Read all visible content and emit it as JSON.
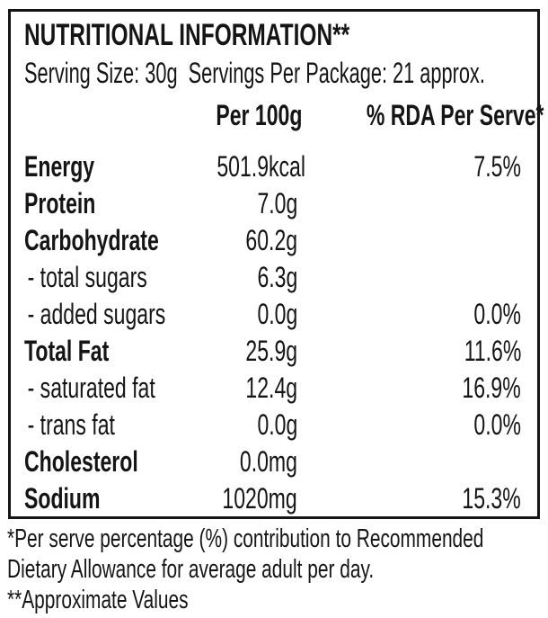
{
  "label": {
    "title": "NUTRITIONAL INFORMATION**",
    "serving_line": "Serving Size: 30g  Servings Per Package: 21 approx.",
    "columns": {
      "per100g": "Per 100g",
      "rda": "% RDA Per Serve*"
    },
    "rows": [
      {
        "name": "Energy",
        "bold": true,
        "per100g": "501.9kcal",
        "rda": "7.5%"
      },
      {
        "name": "Protein",
        "bold": true,
        "per100g": "7.0g",
        "rda": ""
      },
      {
        "name": "Carbohydrate",
        "bold": true,
        "per100g": "60.2g",
        "rda": ""
      },
      {
        "name": "- total sugars",
        "bold": false,
        "per100g": "6.3g",
        "rda": ""
      },
      {
        "name": "- added sugars",
        "bold": false,
        "per100g": "0.0g",
        "rda": "0.0%"
      },
      {
        "name": "Total Fat",
        "bold": true,
        "per100g": "25.9g",
        "rda": "11.6%"
      },
      {
        "name": "- saturated fat",
        "bold": false,
        "per100g": "12.4g",
        "rda": "16.9%"
      },
      {
        "name": "- trans fat",
        "bold": false,
        "per100g": "0.0g",
        "rda": "0.0%"
      },
      {
        "name": "Cholesterol",
        "bold": true,
        "per100g": "0.0mg",
        "rda": ""
      },
      {
        "name": "Sodium",
        "bold": true,
        "per100g": "1020mg",
        "rda": "15.3%"
      }
    ],
    "footnotes": {
      "rda_note": "*Per serve percentage (%) contribution to Recommended Dietary Allowance for average adult per day.",
      "approx_note": "**Approximate Values"
    },
    "colors": {
      "text": "#151515",
      "background": "#ffffff",
      "border": "#151515"
    }
  }
}
